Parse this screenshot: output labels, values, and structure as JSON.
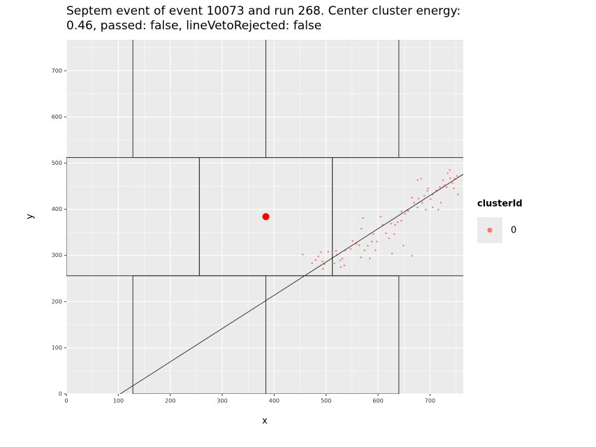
{
  "chart_data": {
    "type": "scatter",
    "title": "Septem event of event 10073 and run 268. Center cluster energy:",
    "subtitle": "0.46, passed: false, lineVetoRejected: false",
    "x_label": "x",
    "y_label": "y",
    "xlim": [
      0,
      764
    ],
    "ylim": [
      0,
      767
    ],
    "xticks": [
      0,
      100,
      200,
      300,
      400,
      500,
      600,
      700
    ],
    "yticks": [
      0,
      100,
      200,
      300,
      400,
      500,
      600,
      700
    ],
    "xminor": [
      50,
      150,
      250,
      350,
      450,
      550,
      650,
      750
    ],
    "yminor": [
      50,
      150,
      250,
      350,
      450,
      550,
      650,
      750
    ],
    "grid": true,
    "legend_title": "clusterId",
    "legend_position": "right",
    "series": [
      {
        "name": "0",
        "color": "#F8766D",
        "x": [
          455,
          473,
          480,
          485,
          490,
          493,
          497,
          504,
          512,
          519,
          521,
          527,
          531,
          535,
          537,
          547,
          551,
          558,
          564,
          568,
          571,
          574,
          580,
          588,
          591,
          598,
          605,
          609,
          615,
          621,
          631,
          633,
          638,
          645,
          652,
          658,
          665,
          676,
          678,
          685,
          692,
          696,
          701,
          705,
          712,
          716,
          721,
          725,
          732,
          739,
          743,
          748,
          754,
          676,
          683,
          656,
          669,
          689,
          645,
          625,
          627,
          649,
          665,
          584,
          595,
          567,
          516,
          528,
          494,
          738,
          734,
          728,
          705,
          695,
          746,
          752,
          719
        ],
        "y": [
          302,
          283,
          290,
          298,
          307,
          287,
          281,
          308,
          305,
          310,
          301,
          289,
          293,
          278,
          311,
          314,
          331,
          325,
          322,
          358,
          381,
          311,
          321,
          330,
          346,
          330,
          384,
          366,
          348,
          337,
          346,
          366,
          372,
          395,
          390,
          396,
          425,
          404,
          423,
          414,
          399,
          445,
          422,
          432,
          441,
          399,
          414,
          463,
          448,
          467,
          457,
          466,
          432,
          463,
          466,
          398,
          414,
          429,
          375,
          369,
          304,
          321,
          299,
          293,
          311,
          296,
          283,
          275,
          271,
          485,
          478,
          452,
          404,
          440,
          445,
          472,
          448
        ]
      }
    ],
    "center": {
      "x": 384,
      "y": 384,
      "color": "#FF0000"
    },
    "line": {
      "x": [
        103.5,
        764
      ],
      "y": [
        0,
        476
      ]
    },
    "chips": [
      [
        0,
        256,
        256,
        512
      ],
      [
        256,
        256,
        512,
        512
      ],
      [
        512,
        256,
        768,
        512
      ],
      [
        128,
        512,
        384,
        768
      ],
      [
        384,
        512,
        640,
        768
      ],
      [
        128,
        0,
        384,
        256
      ],
      [
        384,
        0,
        640,
        256
      ]
    ]
  }
}
